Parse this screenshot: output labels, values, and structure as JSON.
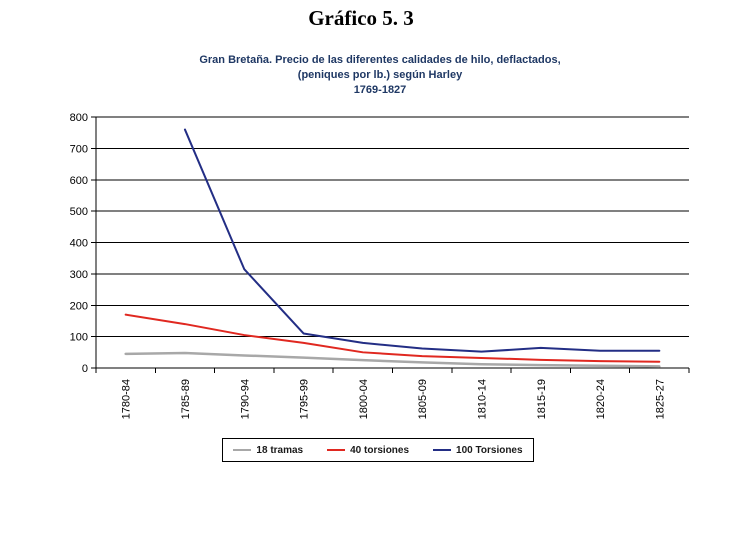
{
  "title": "Gráfico 5. 3",
  "subtitle": {
    "line1": "Gran Bretaña. Precio de las diferentes calidades de hilo, deflactados,",
    "line2": "(peniques por lb.) según Harley",
    "line3": "1769-1827",
    "color": "#1f3864"
  },
  "chart_data": {
    "type": "line",
    "title": "Gran Bretaña. Precio de las diferentes calidades de hilo, deflactados, (peniques por lb.) según Harley 1769-1827",
    "categories": [
      "1780-84",
      "1785-89",
      "1790-94",
      "1795-99",
      "1800-04",
      "1805-09",
      "1810-14",
      "1815-19",
      "1820-24",
      "1825-27"
    ],
    "series": [
      {
        "name": "18 tramas",
        "color": "#a8a8a8",
        "stroke_width": 2.5,
        "values": [
          45,
          48,
          40,
          33,
          25,
          18,
          12,
          9,
          7,
          5
        ]
      },
      {
        "name": "40 torsiones",
        "color": "#e02820",
        "stroke_width": 2,
        "values": [
          170,
          140,
          105,
          80,
          50,
          38,
          32,
          26,
          22,
          20
        ]
      },
      {
        "name": "100 Torsiones",
        "color": "#232e85",
        "stroke_width": 2,
        "values": [
          null,
          760,
          315,
          110,
          80,
          62,
          52,
          64,
          55,
          55
        ]
      }
    ],
    "xlabel": "",
    "ylabel": "",
    "ylim": [
      0,
      800
    ],
    "yticks": [
      0,
      100,
      200,
      300,
      400,
      500,
      600,
      700,
      800
    ],
    "grid": true,
    "gridline_color": "#000000",
    "axis_color": "#000000",
    "tick_label_color": "#000000",
    "legend_position": "bottom"
  }
}
